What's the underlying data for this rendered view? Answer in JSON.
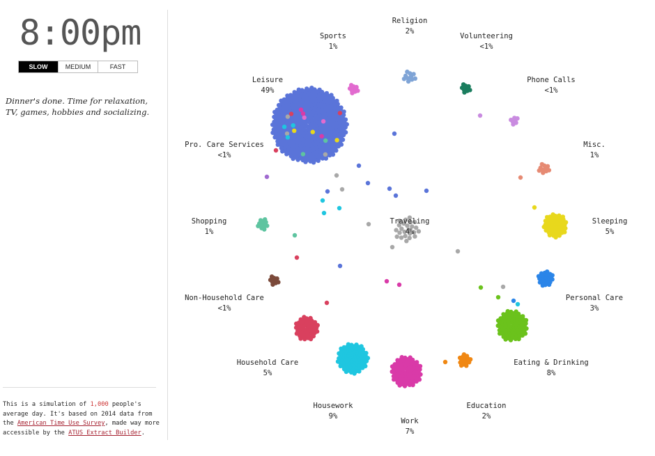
{
  "clock": "8:00pm",
  "speed": {
    "options": [
      "SLOW",
      "MEDIUM",
      "FAST"
    ],
    "selected": "SLOW"
  },
  "narration": "Dinner's done. Time for relaxation, TV, games, hobbies and socializing.",
  "about": {
    "part1": "This is a simulation of ",
    "count": "1,000",
    "part2": " people's average day. It's based on 2014 data from the ",
    "link1": "American Time Use Survey",
    "part3": ", made way more accessible by the ",
    "link2": "ATUS Extract Builder",
    "part4": "."
  },
  "activities": [
    {
      "name": "Religion",
      "pct": "2%",
      "color": "#7fa4d6"
    },
    {
      "name": "Volunteering",
      "pct": "<1%",
      "color": "#1a7d5e"
    },
    {
      "name": "Phone Calls",
      "pct": "<1%",
      "color": "#c98be0"
    },
    {
      "name": "Misc.",
      "pct": "1%",
      "color": "#e68a73"
    },
    {
      "name": "Sleeping",
      "pct": "5%",
      "color": "#e8d81c"
    },
    {
      "name": "Personal Care",
      "pct": "3%",
      "color": "#2b85e8"
    },
    {
      "name": "Eating & Drinking",
      "pct": "8%",
      "color": "#6bc21c"
    },
    {
      "name": "Education",
      "pct": "2%",
      "color": "#f08712"
    },
    {
      "name": "Work",
      "pct": "7%",
      "color": "#d93aa8"
    },
    {
      "name": "Housework",
      "pct": "9%",
      "color": "#1fc6e0"
    },
    {
      "name": "Household Care",
      "pct": "5%",
      "color": "#d9405e"
    },
    {
      "name": "Non-Household Care",
      "pct": "<1%",
      "color": "#7b4a3a"
    },
    {
      "name": "Shopping",
      "pct": "1%",
      "color": "#5ec4a0"
    },
    {
      "name": "Pro. Care Services",
      "pct": "<1%",
      "color": "#a0a0a0"
    },
    {
      "name": "Leisure",
      "pct": "49%",
      "color": "#5a74d9"
    },
    {
      "name": "Sports",
      "pct": "1%",
      "color": "#e26bcf"
    },
    {
      "name": "Traveling",
      "pct": "4%",
      "color": "#a8a8a8"
    }
  ]
}
